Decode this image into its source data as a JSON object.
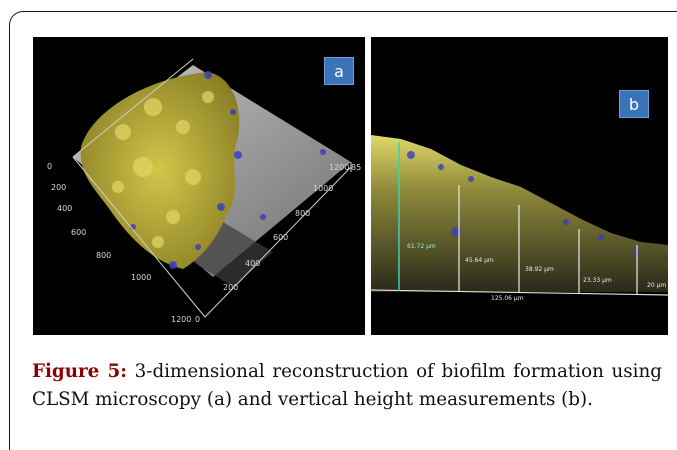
{
  "figure": {
    "panel_a": {
      "badge": "a",
      "axis_labels": [
        "0",
        "200",
        "400",
        "600",
        "800",
        "1000",
        "1200",
        "0",
        "200",
        "400",
        "600",
        "800",
        "1000",
        "1200",
        "85"
      ]
    },
    "panel_b": {
      "badge": "b",
      "measurements": [
        "61.72 μm",
        "45.64 μm",
        "38.92 μm",
        "23.33 μm",
        "20 μm"
      ],
      "total": "125.06 μm"
    },
    "colors": {
      "biofilm_yellow": "#b5a93a",
      "stain_blue": "#3a3fb8",
      "measure_line": "#2fd6b0",
      "caption_label": "#8b0000"
    }
  },
  "caption": {
    "label": "Figure 5:",
    "text": " 3-dimensional reconstruction of biofilm formation using CLSM microscopy (a) and vertical height measurements (b)."
  }
}
